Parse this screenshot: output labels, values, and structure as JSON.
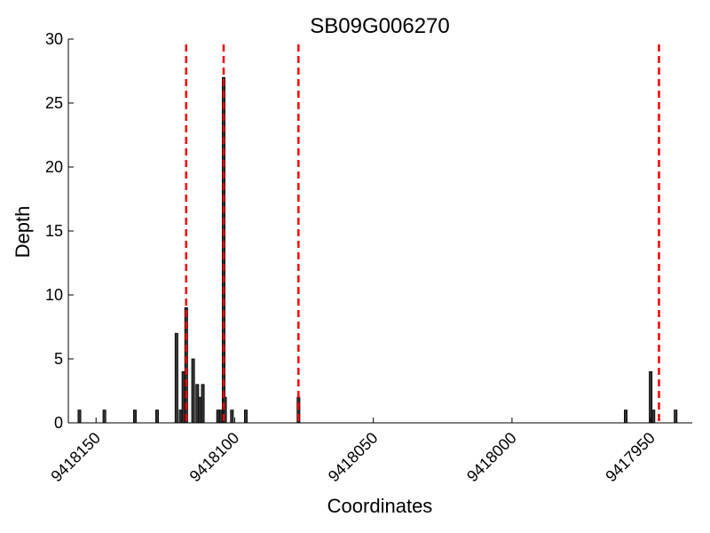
{
  "chart_data": {
    "type": "bar",
    "title": "SB09G006270",
    "xlabel": "Coordinates",
    "ylabel": "Depth",
    "xlim": [
      9418160,
      9417935
    ],
    "ylim": [
      0,
      30
    ],
    "x_ticks": [
      9418150,
      9418100,
      9418050,
      9418000,
      9417950
    ],
    "x_tick_labels": [
      "9418150",
      "9418100",
      "9418050",
      "9418000",
      "9417950"
    ],
    "y_ticks": [
      0,
      5,
      10,
      15,
      20,
      25,
      30
    ],
    "y_tick_labels": [
      "0",
      "5",
      "10",
      "15",
      "20",
      "25",
      "30"
    ],
    "grid": false,
    "bar_color": "#333333",
    "bar_edge_color": "#000000",
    "line_color": "#ff0000",
    "bars": {
      "x": [
        9418156,
        9418147,
        9418136,
        9418128,
        9418121,
        9418119.5,
        9418118.5,
        9418117.5,
        9418115,
        9418113.5,
        9418112.5,
        9418111.5,
        9418106,
        9418105,
        9418104,
        9418103.5,
        9418101,
        9418096,
        9418077,
        9417959,
        9417950,
        9417949,
        9417941
      ],
      "values": [
        1,
        1,
        1,
        1,
        7,
        1,
        4,
        9,
        5,
        3,
        2,
        3,
        1,
        1,
        27,
        2,
        1,
        1,
        2,
        1,
        4,
        1,
        1
      ]
    },
    "dashed_lines": {
      "x": [
        9418117.5,
        9418104,
        9418077,
        9417947
      ]
    }
  }
}
